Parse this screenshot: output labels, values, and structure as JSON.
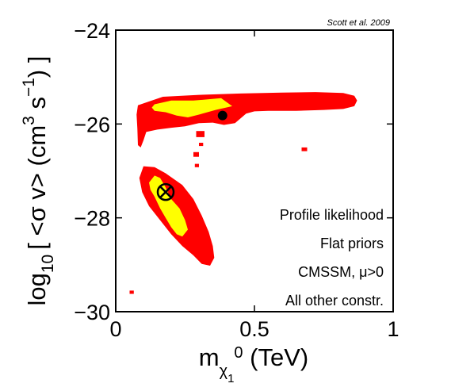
{
  "chart_data": {
    "type": "contour",
    "credit": "Scott et al. 2009",
    "xlabel": {
      "main": "m",
      "sub": "χ",
      "subsub": "1",
      "sup": "0",
      "units": " (TeV)"
    },
    "ylabel": {
      "prefix": "log",
      "sub": "10",
      "main": "[ <σ v> (cm",
      "sup1": "3",
      "mid": " s",
      "sup2": "−1",
      "end": ") ]"
    },
    "xlim": [
      0,
      1
    ],
    "ylim": [
      -30,
      -24
    ],
    "xticks": [
      {
        "v": 0,
        "label": "0"
      },
      {
        "v": 0.5,
        "label": "0.5"
      },
      {
        "v": 1,
        "label": "1"
      }
    ],
    "yticks": [
      {
        "v": -30,
        "label": "−30"
      },
      {
        "v": -28,
        "label": "−28"
      },
      {
        "v": -26,
        "label": "−26"
      },
      {
        "v": -24,
        "label": "−24"
      }
    ],
    "annotations": [
      "Profile likelihood",
      "Flat priors",
      "CMSSM, μ>0",
      "All other constr."
    ],
    "regions": [
      {
        "name": "95% CL",
        "color": "#ff0000",
        "polygons": [
          [
            [
              0.08,
              -25.6
            ],
            [
              0.17,
              -25.42
            ],
            [
              0.3,
              -25.38
            ],
            [
              0.45,
              -25.35
            ],
            [
              0.6,
              -25.33
            ],
            [
              0.72,
              -25.32
            ],
            [
              0.82,
              -25.34
            ],
            [
              0.86,
              -25.4
            ],
            [
              0.87,
              -25.5
            ],
            [
              0.86,
              -25.62
            ],
            [
              0.82,
              -25.68
            ],
            [
              0.75,
              -25.7
            ],
            [
              0.65,
              -25.72
            ],
            [
              0.55,
              -25.72
            ],
            [
              0.5,
              -25.73
            ],
            [
              0.47,
              -25.78
            ],
            [
              0.43,
              -25.98
            ],
            [
              0.39,
              -26.02
            ],
            [
              0.35,
              -25.97
            ],
            [
              0.3,
              -25.98
            ],
            [
              0.25,
              -26.05
            ],
            [
              0.2,
              -26.08
            ],
            [
              0.15,
              -26.12
            ],
            [
              0.11,
              -26.17
            ],
            [
              0.1,
              -26.35
            ],
            [
              0.09,
              -26.5
            ],
            [
              0.08,
              -26.45
            ],
            [
              0.078,
              -26.1
            ],
            [
              0.075,
              -25.8
            ]
          ],
          [
            [
              0.085,
              -27.15
            ],
            [
              0.1,
              -26.9
            ],
            [
              0.14,
              -26.92
            ],
            [
              0.18,
              -27.05
            ],
            [
              0.24,
              -27.3
            ],
            [
              0.28,
              -27.6
            ],
            [
              0.31,
              -27.95
            ],
            [
              0.335,
              -28.3
            ],
            [
              0.35,
              -28.6
            ],
            [
              0.355,
              -28.85
            ],
            [
              0.34,
              -29.02
            ],
            [
              0.31,
              -28.98
            ],
            [
              0.28,
              -28.8
            ],
            [
              0.24,
              -28.6
            ],
            [
              0.2,
              -28.35
            ],
            [
              0.16,
              -28.05
            ],
            [
              0.12,
              -27.75
            ],
            [
              0.095,
              -27.45
            ]
          ],
          [
            [
              0.29,
              -26.15
            ],
            [
              0.32,
              -26.15
            ],
            [
              0.32,
              -26.28
            ],
            [
              0.29,
              -26.28
            ]
          ],
          [
            [
              0.28,
              -26.6
            ],
            [
              0.3,
              -26.6
            ],
            [
              0.3,
              -26.7
            ],
            [
              0.28,
              -26.7
            ]
          ],
          [
            [
              0.3,
              -26.4
            ],
            [
              0.315,
              -26.4
            ],
            [
              0.315,
              -26.47
            ],
            [
              0.3,
              -26.47
            ]
          ],
          [
            [
              0.67,
              -26.5
            ],
            [
              0.69,
              -26.5
            ],
            [
              0.69,
              -26.58
            ],
            [
              0.67,
              -26.58
            ]
          ],
          [
            [
              0.285,
              -26.85
            ],
            [
              0.3,
              -26.85
            ],
            [
              0.3,
              -26.92
            ],
            [
              0.285,
              -26.92
            ]
          ],
          [
            [
              0.05,
              -29.55
            ],
            [
              0.065,
              -29.55
            ],
            [
              0.065,
              -29.62
            ],
            [
              0.05,
              -29.62
            ]
          ]
        ]
      },
      {
        "name": "68% CL",
        "color": "#ffff00",
        "polygons": [
          [
            [
              0.14,
              -25.58
            ],
            [
              0.2,
              -25.5
            ],
            [
              0.28,
              -25.5
            ],
            [
              0.34,
              -25.47
            ],
            [
              0.38,
              -25.45
            ],
            [
              0.42,
              -25.62
            ],
            [
              0.36,
              -25.7
            ],
            [
              0.3,
              -25.8
            ],
            [
              0.26,
              -25.86
            ],
            [
              0.22,
              -25.82
            ],
            [
              0.18,
              -25.75
            ],
            [
              0.14,
              -25.72
            ],
            [
              0.13,
              -25.65
            ]
          ],
          [
            [
              0.12,
              -27.25
            ],
            [
              0.14,
              -27.1
            ],
            [
              0.16,
              -27.15
            ],
            [
              0.18,
              -27.35
            ],
            [
              0.2,
              -27.6
            ],
            [
              0.23,
              -27.8
            ],
            [
              0.25,
              -28.05
            ],
            [
              0.26,
              -28.25
            ],
            [
              0.24,
              -28.4
            ],
            [
              0.22,
              -28.35
            ],
            [
              0.2,
              -28.2
            ],
            [
              0.18,
              -28.0
            ],
            [
              0.16,
              -27.8
            ],
            [
              0.14,
              -27.55
            ],
            [
              0.125,
              -27.4
            ]
          ]
        ]
      }
    ],
    "markers": [
      {
        "name": "best-fit",
        "type": "dot",
        "x": 0.385,
        "y": -25.82
      },
      {
        "name": "posterior-mean",
        "type": "circle-cross",
        "x": 0.18,
        "y": -27.45
      }
    ]
  }
}
